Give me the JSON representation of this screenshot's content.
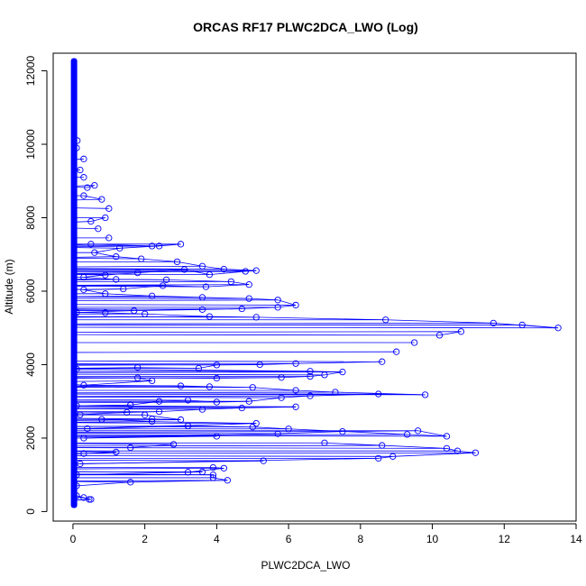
{
  "chart_data": {
    "type": "line",
    "title": "ORCAS RF17 PLWC2DCA_LWO (Log)",
    "xlabel": "PLWC2DCA_LWO",
    "ylabel": "Altitude (m)",
    "xlim": [
      -0.55,
      14
    ],
    "ylim": [
      -260,
      12480
    ],
    "xticks": [
      0,
      2,
      4,
      6,
      8,
      10,
      12,
      14
    ],
    "yticks": [
      0,
      2000,
      4000,
      6000,
      8000,
      10000,
      12000
    ],
    "grid": false,
    "series": [
      {
        "color": "#0000ff",
        "marker": "open-circle",
        "zero_band": {
          "x": 0.03,
          "ymin": 170,
          "ymax": 12270
        },
        "points": [
          [
            0.5,
            330
          ],
          [
            0.3,
            380
          ],
          [
            0.1,
            430
          ],
          [
            0.45,
            330
          ],
          [
            0.1,
            700
          ],
          [
            1.6,
            800
          ],
          [
            4.3,
            850
          ],
          [
            3.9,
            920
          ],
          [
            3.9,
            1000
          ],
          [
            0.1,
            1000
          ],
          [
            3.6,
            1080
          ],
          [
            3.2,
            1070
          ],
          [
            4.2,
            1180
          ],
          [
            3.9,
            1200
          ],
          [
            5.3,
            1380
          ],
          [
            0.2,
            1300
          ],
          [
            8.5,
            1450
          ],
          [
            8.9,
            1500
          ],
          [
            11.2,
            1600
          ],
          [
            10.7,
            1650
          ],
          [
            10.4,
            1720
          ],
          [
            8.6,
            1800
          ],
          [
            7.0,
            1870
          ],
          [
            1.2,
            1620
          ],
          [
            0.3,
            1580
          ],
          [
            1.6,
            1740
          ],
          [
            2.8,
            1830
          ],
          [
            4.0,
            2050
          ],
          [
            0.3,
            2000
          ],
          [
            5.7,
            2120
          ],
          [
            7.5,
            2180
          ],
          [
            9.6,
            2200
          ],
          [
            10.4,
            2050
          ],
          [
            9.3,
            2100
          ],
          [
            6.0,
            2250
          ],
          [
            5.0,
            2300
          ],
          [
            3.2,
            2330
          ],
          [
            0.4,
            2260
          ],
          [
            5.1,
            2400
          ],
          [
            2.2,
            2450
          ],
          [
            0.8,
            2510
          ],
          [
            2.2,
            2520
          ],
          [
            3.0,
            2500
          ],
          [
            2.0,
            2630
          ],
          [
            0.2,
            2640
          ],
          [
            1.5,
            2700
          ],
          [
            2.4,
            2720
          ],
          [
            3.6,
            2780
          ],
          [
            4.7,
            2820
          ],
          [
            6.2,
            2850
          ],
          [
            0.1,
            2880
          ],
          [
            1.6,
            2900
          ],
          [
            2.4,
            3000
          ],
          [
            3.2,
            3030
          ],
          [
            4.0,
            2980
          ],
          [
            4.9,
            3000
          ],
          [
            5.8,
            3100
          ],
          [
            6.6,
            3150
          ],
          [
            8.5,
            3200
          ],
          [
            9.8,
            3180
          ],
          [
            7.3,
            3250
          ],
          [
            6.2,
            3300
          ],
          [
            5.0,
            3380
          ],
          [
            3.8,
            3400
          ],
          [
            3.0,
            3420
          ],
          [
            0.3,
            3440
          ],
          [
            2.2,
            3560
          ],
          [
            1.8,
            3640
          ],
          [
            4.0,
            3630
          ],
          [
            5.8,
            3650
          ],
          [
            6.6,
            3680
          ],
          [
            7.0,
            3720
          ],
          [
            7.5,
            3800
          ],
          [
            6.6,
            3820
          ],
          [
            0.1,
            3880
          ],
          [
            1.8,
            3920
          ],
          [
            3.5,
            3900
          ],
          [
            4.0,
            3990
          ],
          [
            5.2,
            4000
          ],
          [
            6.2,
            4030
          ],
          [
            8.6,
            4080
          ],
          [
            9.0,
            4350
          ],
          [
            9.5,
            4600
          ],
          [
            10.2,
            4800
          ],
          [
            10.8,
            4900
          ],
          [
            12.5,
            5080
          ],
          [
            13.5,
            5000
          ],
          [
            11.7,
            5130
          ],
          [
            8.7,
            5220
          ],
          [
            5.1,
            5290
          ],
          [
            3.8,
            5310
          ],
          [
            2.0,
            5380
          ],
          [
            0.9,
            5410
          ],
          [
            0.1,
            5420
          ],
          [
            1.7,
            5470
          ],
          [
            3.6,
            5500
          ],
          [
            4.7,
            5520
          ],
          [
            5.7,
            5560
          ],
          [
            6.2,
            5620
          ],
          [
            5.7,
            5760
          ],
          [
            4.9,
            5800
          ],
          [
            3.6,
            5830
          ],
          [
            2.2,
            5870
          ],
          [
            0.9,
            5930
          ],
          [
            0.3,
            6040
          ],
          [
            1.4,
            6060
          ],
          [
            2.5,
            6150
          ],
          [
            3.7,
            6120
          ],
          [
            4.9,
            6180
          ],
          [
            4.4,
            6260
          ],
          [
            2.6,
            6310
          ],
          [
            1.2,
            6320
          ],
          [
            0.3,
            6380
          ],
          [
            0.9,
            6440
          ],
          [
            1.8,
            6500
          ],
          [
            3.1,
            6590
          ],
          [
            3.8,
            6450
          ],
          [
            4.8,
            6540
          ],
          [
            5.1,
            6560
          ],
          [
            4.2,
            6600
          ],
          [
            3.6,
            6680
          ],
          [
            2.9,
            6800
          ],
          [
            1.9,
            6880
          ],
          [
            1.2,
            6940
          ],
          [
            0.6,
            7050
          ],
          [
            1.3,
            7170
          ],
          [
            2.4,
            7230
          ],
          [
            3.0,
            7280
          ],
          [
            2.2,
            7230
          ],
          [
            0.5,
            7280
          ],
          [
            1.0,
            7450
          ],
          [
            0.7,
            7700
          ],
          [
            0.5,
            7900
          ],
          [
            0.9,
            8000
          ],
          [
            1.0,
            8250
          ],
          [
            0.8,
            8500
          ],
          [
            0.3,
            8600
          ],
          [
            0.4,
            8820
          ],
          [
            0.6,
            8880
          ],
          [
            0.3,
            9100
          ],
          [
            0.2,
            9300
          ],
          [
            0.3,
            9600
          ],
          [
            0.1,
            9900
          ],
          [
            0.12,
            10100
          ]
        ]
      }
    ]
  }
}
